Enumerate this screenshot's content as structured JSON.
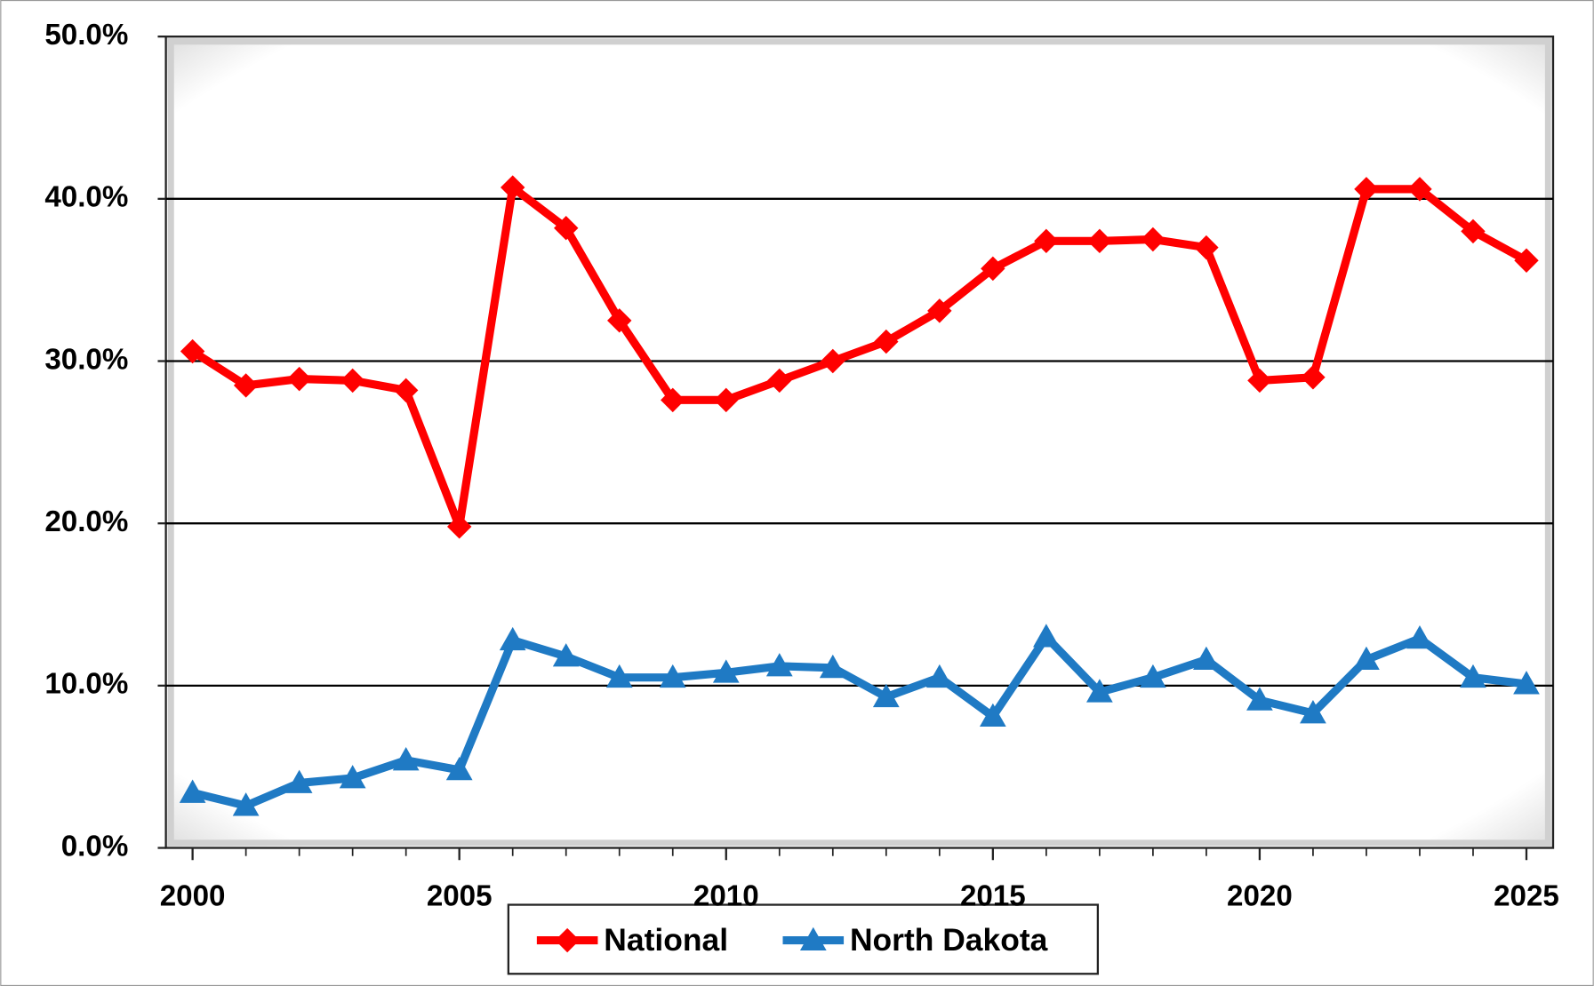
{
  "chart_data": {
    "type": "line",
    "x": [
      2000,
      2001,
      2002,
      2003,
      2004,
      2005,
      2006,
      2007,
      2008,
      2009,
      2010,
      2011,
      2012,
      2013,
      2014,
      2015,
      2016,
      2017,
      2018,
      2019,
      2020,
      2021,
      2022,
      2023,
      2024,
      2025
    ],
    "series": [
      {
        "name": "National",
        "color": "#ff0000",
        "marker": "diamond",
        "values": [
          30.6,
          28.5,
          28.9,
          28.8,
          28.2,
          19.8,
          40.7,
          38.2,
          32.5,
          27.6,
          27.6,
          28.8,
          30.0,
          31.2,
          33.1,
          35.7,
          37.4,
          37.4,
          37.5,
          37.0,
          28.8,
          29.0,
          40.6,
          40.6,
          38.0,
          36.2
        ]
      },
      {
        "name": "North Dakota",
        "color": "#1f7ac4",
        "marker": "triangle",
        "values": [
          3.4,
          2.6,
          4.0,
          4.3,
          5.4,
          4.8,
          12.8,
          11.8,
          10.5,
          10.5,
          10.8,
          11.2,
          11.1,
          9.3,
          10.5,
          8.1,
          13.0,
          9.6,
          10.5,
          11.6,
          9.1,
          8.3,
          11.6,
          12.9,
          10.5,
          10.1
        ]
      }
    ],
    "xlim": [
      1999.5,
      2025.5
    ],
    "xticks": [
      2000,
      2005,
      2010,
      2015,
      2020,
      2025
    ],
    "ylim": [
      0,
      50
    ],
    "yticks": [
      {
        "value": 0,
        "label": "0.0%"
      },
      {
        "value": 10,
        "label": "10.0%"
      },
      {
        "value": 20,
        "label": "20.0%"
      },
      {
        "value": 30,
        "label": "30.0%"
      },
      {
        "value": 40,
        "label": "40.0%"
      },
      {
        "value": 50,
        "label": "50.0%"
      }
    ],
    "grid": true,
    "legend": "bottom"
  }
}
